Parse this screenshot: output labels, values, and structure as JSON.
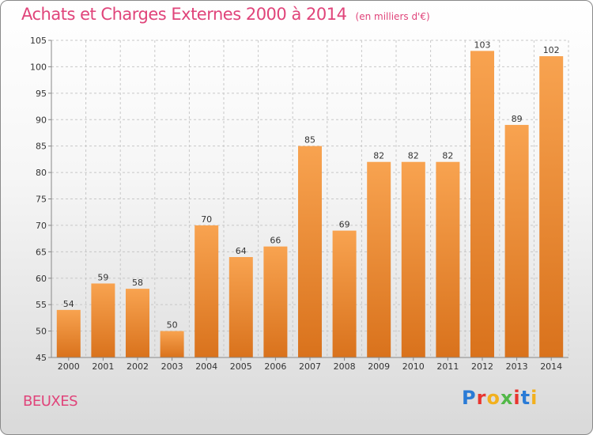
{
  "header": {
    "title": "Achats et Charges Externes 2000 à 2014",
    "unit": "(en milliers d'€)"
  },
  "footer": {
    "commune": "BEUXES",
    "logo": {
      "text": "Proxiti",
      "colors": [
        "#2a7bd6",
        "#e8352f",
        "#f2b01e",
        "#52b848",
        "#e8352f",
        "#2a7bd6",
        "#f2b01e"
      ]
    }
  },
  "colors": {
    "bar_top": "#f8a350",
    "bar_bottom": "#d9721c",
    "grid": "#c8c8c8",
    "accent": "#e0447a"
  },
  "chart_data": {
    "type": "bar",
    "title": "Achats et Charges Externes 2000 à 2014",
    "subtitle": "(en milliers d'€)",
    "categories": [
      "2000",
      "2001",
      "2002",
      "2003",
      "2004",
      "2005",
      "2006",
      "2007",
      "2008",
      "2009",
      "2010",
      "2011",
      "2012",
      "2013",
      "2014"
    ],
    "values": [
      54,
      59,
      58,
      50,
      70,
      64,
      66,
      85,
      69,
      82,
      82,
      82,
      103,
      89,
      102
    ],
    "ylim": [
      45,
      105
    ],
    "yticks": [
      45,
      50,
      55,
      60,
      65,
      70,
      75,
      80,
      85,
      90,
      95,
      100,
      105
    ],
    "grid": true,
    "data_labels": true
  }
}
